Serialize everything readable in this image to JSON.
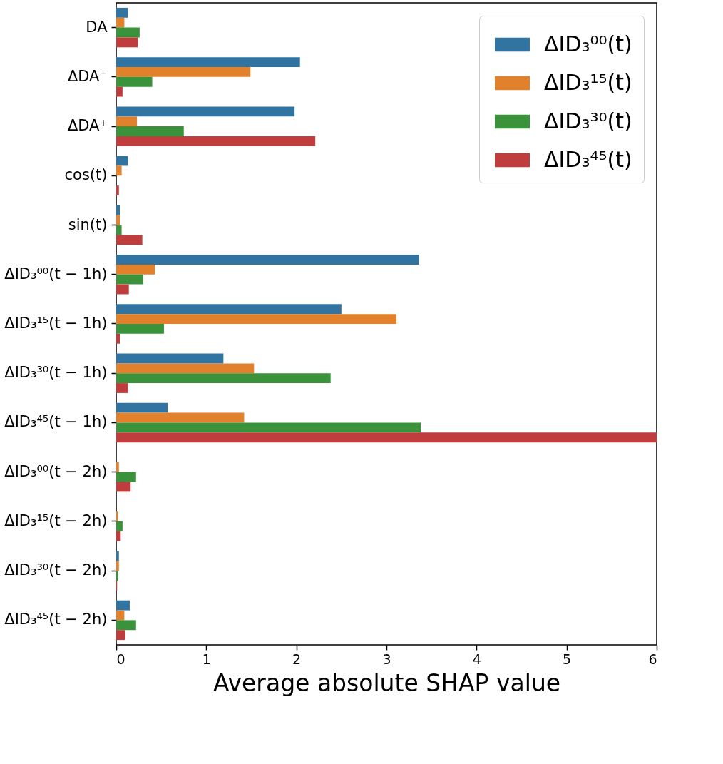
{
  "chart_data": {
    "type": "bar",
    "orientation": "horizontal",
    "xlabel": "Average absolute SHAP value",
    "categories": [
      "DA",
      "ΔDA⁻",
      "ΔDA⁺",
      "cos(t)",
      "sin(t)",
      "ΔID₃⁰⁰(t − 1h)",
      "ΔID₃¹⁵(t − 1h)",
      "ΔID₃³⁰(t − 1h)",
      "ΔID₃⁴⁵(t − 1h)",
      "ΔID₃⁰⁰(t − 2h)",
      "ΔID₃¹⁵(t − 2h)",
      "ΔID₃³⁰(t − 2h)",
      "ΔID₃⁴⁵(t − 2h)"
    ],
    "series": [
      {
        "name": "ΔID₃⁰⁰(t)",
        "color": "#3274a1",
        "values": [
          0.13,
          2.04,
          1.98,
          0.13,
          0.04,
          3.36,
          2.5,
          1.19,
          0.57,
          0,
          0,
          0.03,
          0.15
        ]
      },
      {
        "name": "ΔID₃¹⁵(t)",
        "color": "#e1812c",
        "values": [
          0.09,
          1.49,
          0.23,
          0.06,
          0.04,
          0.43,
          3.11,
          1.53,
          1.42,
          0.03,
          0.02,
          0.03,
          0.09
        ]
      },
      {
        "name": "ΔID₃³⁰(t)",
        "color": "#3a923a",
        "values": [
          0.26,
          0.4,
          0.75,
          0,
          0.06,
          0.3,
          0.53,
          2.38,
          3.38,
          0.22,
          0.07,
          0.02,
          0.22
        ]
      },
      {
        "name": "ΔID₃⁴⁵(t)",
        "color": "#c03d3e",
        "values": [
          0.24,
          0.07,
          2.21,
          0.03,
          0.29,
          0.14,
          0.04,
          0.13,
          6.0,
          0.16,
          0.05,
          0.01,
          0.1
        ]
      }
    ],
    "xlim": [
      0,
      6
    ],
    "xticks": [
      0,
      1,
      2,
      3,
      4,
      5,
      6
    ],
    "legend": "top right",
    "grid": false
  }
}
